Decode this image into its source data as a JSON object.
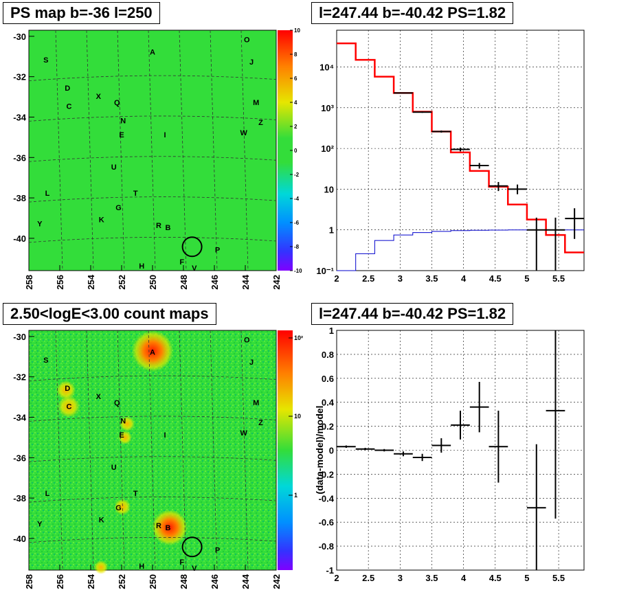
{
  "panels": {
    "tl": {
      "title": "PS map b=-36 l=250"
    },
    "tr": {
      "title": "l=247.44 b=-40.42 PS=1.82"
    },
    "bl": {
      "title": "2.50<logE<3.00 count maps"
    },
    "br": {
      "title": "l=247.44 b=-40.42 PS=1.82"
    }
  },
  "colors": {
    "map_bg": "#33dd3a",
    "spectrum_data": "#000000",
    "model": "#ff0000",
    "background_model": "#0000cc"
  },
  "sky_map": {
    "x_ticks": [
      "258",
      "256",
      "254",
      "252",
      "250",
      "248",
      "246",
      "244",
      "242"
    ],
    "y_ticks": [
      "-30",
      "-32",
      "-34",
      "-36",
      "-38",
      "-40"
    ],
    "source_labels": [
      {
        "t": "A",
        "l": 250.0,
        "b": -30.9
      },
      {
        "t": "O",
        "l": 243.9,
        "b": -30.3
      },
      {
        "t": "S",
        "l": 256.9,
        "b": -31.3
      },
      {
        "t": "J",
        "l": 243.6,
        "b": -31.4
      },
      {
        "t": "D",
        "l": 255.5,
        "b": -32.7
      },
      {
        "t": "X",
        "l": 253.5,
        "b": -33.1
      },
      {
        "t": "Q",
        "l": 252.3,
        "b": -33.4
      },
      {
        "t": "C",
        "l": 255.4,
        "b": -33.6
      },
      {
        "t": "M",
        "l": 243.3,
        "b": -33.4
      },
      {
        "t": "N",
        "l": 251.9,
        "b": -34.3
      },
      {
        "t": "Z",
        "l": 243.0,
        "b": -34.4
      },
      {
        "t": "W",
        "l": 244.1,
        "b": -34.9
      },
      {
        "t": "E",
        "l": 252.0,
        "b": -35.0
      },
      {
        "t": "I",
        "l": 249.2,
        "b": -35.0
      },
      {
        "t": "U",
        "l": 252.5,
        "b": -36.6
      },
      {
        "t": "T",
        "l": 251.1,
        "b": -37.9
      },
      {
        "t": "L",
        "l": 256.8,
        "b": -37.9
      },
      {
        "t": "G",
        "l": 252.2,
        "b": -38.6
      },
      {
        "t": "K",
        "l": 253.3,
        "b": -39.2
      },
      {
        "t": "Y",
        "l": 257.3,
        "b": -39.4
      },
      {
        "t": "R",
        "l": 249.6,
        "b": -39.5
      },
      {
        "t": "B",
        "l": 249.0,
        "b": -39.6
      },
      {
        "t": "P",
        "l": 245.8,
        "b": -40.7
      },
      {
        "t": "F",
        "l": 248.1,
        "b": -41.3
      },
      {
        "t": "H",
        "l": 250.7,
        "b": -41.5
      },
      {
        "t": "V",
        "l": 247.3,
        "b": -41.6
      }
    ],
    "circle": {
      "l": 247.44,
      "b": -40.42
    }
  },
  "ps_colorbar": {
    "ticks": [
      "10",
      "8",
      "6",
      "4",
      "2",
      "0",
      "-2",
      "-4",
      "-6",
      "-8",
      "-10"
    ]
  },
  "count_colorbar": {
    "ticks": [
      "10²",
      "10",
      "1"
    ]
  },
  "chart_data": [
    {
      "type": "line",
      "title": "l=247.44 b=-40.42 PS=1.82",
      "xlabel": "",
      "ylabel": "",
      "xlim": [
        2,
        5.9
      ],
      "ylim": [
        0.1,
        80000
      ],
      "yscale": "log",
      "grid": true,
      "x_ticks": [
        "2",
        "2.5",
        "3",
        "3.5",
        "4",
        "4.5",
        "5",
        "5.5"
      ],
      "y_ticks": [
        {
          "v": 0.1,
          "t": "10⁻¹"
        },
        {
          "v": 1,
          "t": "1"
        },
        {
          "v": 10,
          "t": "10"
        },
        {
          "v": 100,
          "t": "10²"
        },
        {
          "v": 1000,
          "t": "10³"
        },
        {
          "v": 10000,
          "t": "10⁴"
        }
      ],
      "model_edges": [
        2.0,
        2.3,
        2.6,
        2.9,
        3.2,
        3.5,
        3.8,
        4.1,
        4.4,
        4.7,
        5.0,
        5.3,
        5.6,
        5.9
      ],
      "model_values": [
        38000,
        15000,
        5800,
        2300,
        800,
        260,
        80,
        28,
        11.5,
        4.2,
        1.8,
        0.75,
        0.28
      ],
      "bkg_values": [
        0.1,
        0.26,
        0.55,
        0.75,
        0.86,
        0.92,
        0.96,
        0.98,
        0.99,
        1.0,
        1.0,
        1.0,
        1.0
      ],
      "data": [
        {
          "x": 3.05,
          "y": 2300,
          "xe": 0.15,
          "ylo": 2250,
          "yhi": 2350
        },
        {
          "x": 3.35,
          "y": 780,
          "xe": 0.15,
          "ylo": 750,
          "yhi": 810
        },
        {
          "x": 3.65,
          "y": 260,
          "xe": 0.15,
          "ylo": 245,
          "yhi": 275
        },
        {
          "x": 3.95,
          "y": 95,
          "xe": 0.15,
          "ylo": 85,
          "yhi": 105
        },
        {
          "x": 4.25,
          "y": 38,
          "xe": 0.15,
          "ylo": 32,
          "yhi": 44
        },
        {
          "x": 4.55,
          "y": 12,
          "xe": 0.15,
          "ylo": 9,
          "yhi": 15
        },
        {
          "x": 4.85,
          "y": 10,
          "xe": 0.15,
          "ylo": 7.5,
          "yhi": 13
        },
        {
          "x": 5.15,
          "y": 1,
          "xe": 0.15,
          "ylo": 0.1,
          "yhi": 2
        },
        {
          "x": 5.45,
          "y": 1,
          "xe": 0.15,
          "ylo": 0.1,
          "yhi": 2
        },
        {
          "x": 5.75,
          "y": 1.9,
          "xe": 0.15,
          "ylo": 0.6,
          "yhi": 3.4
        }
      ]
    },
    {
      "type": "scatter",
      "title": "l=247.44 b=-40.42 PS=1.82",
      "xlabel": "",
      "ylabel": "(data-model)/model",
      "xlim": [
        2,
        5.9
      ],
      "ylim": [
        -1,
        1
      ],
      "grid": true,
      "x_ticks": [
        "2",
        "2.5",
        "3",
        "3.5",
        "4",
        "4.5",
        "5",
        "5.5"
      ],
      "y_ticks": [
        "1",
        "0.8",
        "0.6",
        "0.4",
        "0.2",
        "0",
        "-0.2",
        "-0.4",
        "-0.6",
        "-0.8",
        "-1"
      ],
      "data": [
        {
          "x": 2.15,
          "y": 0.03,
          "xe": 0.15,
          "ye": 0.01
        },
        {
          "x": 2.45,
          "y": 0.01,
          "xe": 0.15,
          "ye": 0.01
        },
        {
          "x": 2.75,
          "y": 0.0,
          "xe": 0.15,
          "ye": 0.01
        },
        {
          "x": 3.05,
          "y": -0.03,
          "xe": 0.15,
          "ye": 0.02
        },
        {
          "x": 3.35,
          "y": -0.06,
          "xe": 0.15,
          "ye": 0.03
        },
        {
          "x": 3.65,
          "y": 0.04,
          "xe": 0.15,
          "ye": 0.06
        },
        {
          "x": 3.95,
          "y": 0.21,
          "xe": 0.15,
          "ye": 0.12
        },
        {
          "x": 4.25,
          "y": 0.36,
          "xe": 0.15,
          "ye": 0.21
        },
        {
          "x": 4.55,
          "y": 0.03,
          "xe": 0.15,
          "ye": 0.3
        },
        {
          "x": 5.15,
          "y": -0.48,
          "xe": 0.15,
          "ye": 0.53
        },
        {
          "x": 5.45,
          "y": 0.33,
          "xe": 0.15,
          "ye": 0.9
        }
      ]
    }
  ]
}
